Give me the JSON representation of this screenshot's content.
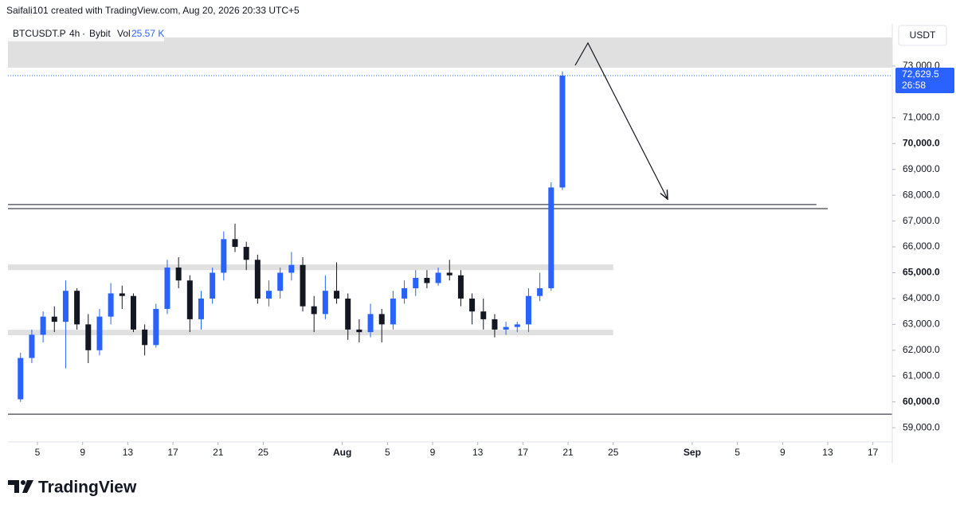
{
  "header": "Saifali101 created with TradingView.com, Aug 20, 2026 20:33 UTC+5",
  "brand": "TradingView",
  "chart_data": {
    "type": "candlestick",
    "symbol": "BTCUSDT.P",
    "interval": "4h",
    "exchange": "Bybit",
    "volume_label": "Vol",
    "volume": "25.57 K",
    "currency": "USDT",
    "up_color": "#2962ff",
    "down_color": "#131722",
    "x": [
      "2026-07-03",
      "2026-07-04",
      "2026-07-05",
      "2026-07-06",
      "2026-07-07",
      "2026-07-08",
      "2026-07-09",
      "2026-07-10",
      "2026-07-11",
      "2026-07-12",
      "2026-07-13",
      "2026-07-14",
      "2026-07-15",
      "2026-07-16",
      "2026-07-17",
      "2026-07-18",
      "2026-07-19",
      "2026-07-20",
      "2026-07-21",
      "2026-07-22",
      "2026-07-23",
      "2026-07-24",
      "2026-07-25",
      "2026-07-26",
      "2026-07-27",
      "2026-07-28",
      "2026-07-29",
      "2026-07-30",
      "2026-07-31",
      "2026-08-01",
      "2026-08-02",
      "2026-08-03",
      "2026-08-04",
      "2026-08-05",
      "2026-08-06",
      "2026-08-07",
      "2026-08-08",
      "2026-08-09",
      "2026-08-10",
      "2026-08-11",
      "2026-08-12",
      "2026-08-13",
      "2026-08-14",
      "2026-08-15",
      "2026-08-16",
      "2026-08-17",
      "2026-08-18",
      "2026-08-19",
      "2026-08-20"
    ],
    "open": [
      60100,
      61700,
      62600,
      63300,
      63100,
      64300,
      63000,
      62000,
      63300,
      64200,
      64100,
      62800,
      62200,
      63600,
      65200,
      64700,
      63200,
      64000,
      65000,
      66300,
      66000,
      65500,
      64000,
      64300,
      65000,
      65300,
      63700,
      63400,
      64300,
      64000,
      62800,
      62700,
      63400,
      63000,
      64000,
      64400,
      64800,
      64600,
      65000,
      64900,
      64000,
      63500,
      63200,
      62800,
      62900,
      63000,
      64100,
      64400,
      68300
    ],
    "high": [
      61900,
      62800,
      63500,
      63700,
      64700,
      64400,
      63400,
      63600,
      64600,
      64500,
      64200,
      63000,
      63800,
      65500,
      65600,
      64900,
      64300,
      65200,
      66600,
      66900,
      66200,
      65700,
      64700,
      65200,
      65800,
      65600,
      64100,
      64900,
      65400,
      64200,
      63200,
      63800,
      63600,
      64300,
      64700,
      65100,
      65100,
      65200,
      65500,
      65100,
      64200,
      64000,
      63400,
      63100,
      63100,
      64400,
      65000,
      68500,
      72800
    ],
    "low": [
      60000,
      61500,
      62300,
      62700,
      61300,
      62800,
      61500,
      61800,
      63000,
      63600,
      62700,
      61800,
      62100,
      63400,
      64400,
      62700,
      62800,
      63800,
      64700,
      65800,
      65100,
      63800,
      63700,
      64000,
      64700,
      63500,
      62700,
      63200,
      63800,
      62400,
      62300,
      62500,
      62300,
      62800,
      63800,
      64100,
      64400,
      64500,
      64700,
      63700,
      63000,
      62800,
      62500,
      62600,
      62700,
      62700,
      63900,
      64300,
      68200
    ],
    "close": [
      61700,
      62600,
      63300,
      63100,
      64300,
      63000,
      62000,
      63300,
      64200,
      64100,
      62800,
      62200,
      63600,
      65200,
      64700,
      63200,
      64000,
      65000,
      66300,
      66000,
      65500,
      64000,
      64300,
      65000,
      65300,
      63700,
      63400,
      64300,
      64000,
      62800,
      62700,
      63400,
      63000,
      64000,
      64400,
      64800,
      64600,
      65000,
      64900,
      64000,
      63500,
      63200,
      62800,
      62900,
      63000,
      64100,
      64400,
      68300,
      72629.5
    ],
    "last_price": {
      "value": 72629.5,
      "label": "72,629.5"
    },
    "countdown": "26:58",
    "xlim": [
      "2026-07-02",
      "2026-09-19"
    ],
    "xticks": [
      {
        "value": "2026-07-05",
        "label": "5"
      },
      {
        "value": "2026-07-09",
        "label": "9"
      },
      {
        "value": "2026-07-13",
        "label": "13"
      },
      {
        "value": "2026-07-17",
        "label": "17"
      },
      {
        "value": "2026-07-21",
        "label": "21"
      },
      {
        "value": "2026-07-25",
        "label": "25"
      },
      {
        "value": "2026-08-01",
        "label": "Aug"
      },
      {
        "value": "2026-08-05",
        "label": "5"
      },
      {
        "value": "2026-08-09",
        "label": "9"
      },
      {
        "value": "2026-08-13",
        "label": "13"
      },
      {
        "value": "2026-08-17",
        "label": "17"
      },
      {
        "value": "2026-08-21",
        "label": "21"
      },
      {
        "value": "2026-08-25",
        "label": "25"
      },
      {
        "value": "2026-09-01",
        "label": "Sep"
      },
      {
        "value": "2026-09-05",
        "label": "5"
      },
      {
        "value": "2026-09-09",
        "label": "9"
      },
      {
        "value": "2026-09-13",
        "label": "13"
      },
      {
        "value": "2026-09-17",
        "label": "17"
      }
    ],
    "ylim": [
      58450,
      74170
    ],
    "yticks": [
      {
        "value": 73000,
        "label": "73,000.0"
      },
      {
        "value": 71000,
        "label": "71,000.0"
      },
      {
        "value": 70000,
        "label": "70,000.0"
      },
      {
        "value": 69000,
        "label": "69,000.0"
      },
      {
        "value": 68000,
        "label": "68,000.0"
      },
      {
        "value": 67000,
        "label": "67,000.0"
      },
      {
        "value": 66000,
        "label": "66,000.0"
      },
      {
        "value": 65000,
        "label": "65,000.0"
      },
      {
        "value": 64000,
        "label": "64,000.0"
      },
      {
        "value": 63000,
        "label": "63,000.0"
      },
      {
        "value": 62000,
        "label": "62,000.0"
      },
      {
        "value": 61000,
        "label": "61,000.0"
      },
      {
        "value": 60000,
        "label": "60,000.0"
      },
      {
        "value": 59000,
        "label": "59,000.0"
      }
    ],
    "bold_yticks": [
      70000,
      65000,
      60000
    ],
    "zones": [
      {
        "from": 72940,
        "to": 74110
      },
      {
        "from": 65100,
        "to": 65320,
        "end": "2026-08-25"
      },
      {
        "from": 62580,
        "to": 62790,
        "end": "2026-08-25"
      }
    ],
    "levels": [
      {
        "price": 67640,
        "end": "2026-09-12"
      },
      {
        "price": 67480,
        "end": "2026-09-13"
      },
      {
        "price": 59525
      }
    ]
  }
}
